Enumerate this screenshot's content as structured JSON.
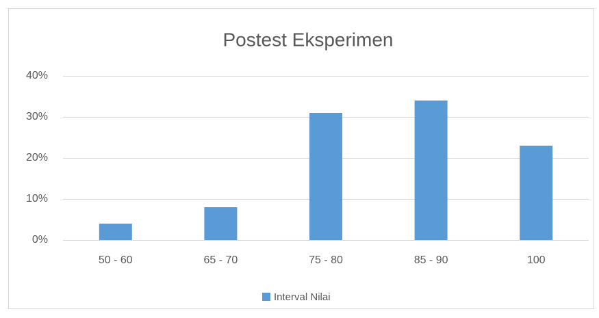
{
  "chart_data": {
    "type": "bar",
    "title": "Postest Eksperimen",
    "categories": [
      "50 - 60",
      "65 - 70",
      "75 - 80",
      "85 - 90",
      "100"
    ],
    "series": [
      {
        "name": "Interval Nilai",
        "color": "#5b9bd5",
        "values": [
          4,
          8,
          31,
          34,
          23
        ]
      }
    ],
    "ylim": [
      0,
      40
    ],
    "yticks": [
      {
        "value": 0,
        "label": "0%"
      },
      {
        "value": 10,
        "label": "10%"
      },
      {
        "value": 20,
        "label": "20%"
      },
      {
        "value": 30,
        "label": "30%"
      },
      {
        "value": 40,
        "label": "40%"
      }
    ],
    "grid": true,
    "legend": "bottom"
  }
}
